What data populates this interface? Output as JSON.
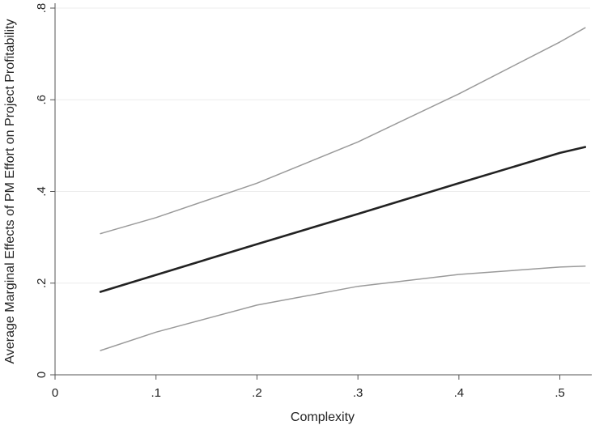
{
  "chart_data": {
    "type": "line",
    "title": "",
    "xlabel": "Complexity",
    "ylabel": "Average Marginal Effects of PM Effort on Project Profitability",
    "xlim": [
      0,
      0.53
    ],
    "ylim": [
      0,
      0.8
    ],
    "x_ticks": [
      0,
      0.1,
      0.2,
      0.3,
      0.4,
      0.5
    ],
    "x_tick_labels": [
      "0",
      ".1",
      ".2",
      ".3",
      ".4",
      ".5"
    ],
    "y_ticks": [
      0,
      0.2,
      0.4,
      0.6,
      0.8
    ],
    "y_tick_labels": [
      "0",
      ".2",
      ".4",
      ".6",
      ".8"
    ],
    "grid": true,
    "legend": "none",
    "series": [
      {
        "role": "estimate",
        "color": "#222222",
        "x": [
          0.045,
          0.1,
          0.2,
          0.3,
          0.4,
          0.5,
          0.525
        ],
        "y": [
          0.181,
          0.218,
          0.285,
          0.351,
          0.418,
          0.484,
          0.497
        ]
      },
      {
        "role": "upper-ci",
        "color": "#9a9a9a",
        "x": [
          0.045,
          0.1,
          0.2,
          0.3,
          0.4,
          0.5,
          0.525
        ],
        "y": [
          0.308,
          0.343,
          0.418,
          0.508,
          0.613,
          0.726,
          0.757
        ]
      },
      {
        "role": "lower-ci",
        "color": "#9a9a9a",
        "x": [
          0.045,
          0.1,
          0.2,
          0.3,
          0.4,
          0.5,
          0.525
        ],
        "y": [
          0.053,
          0.093,
          0.152,
          0.193,
          0.219,
          0.235,
          0.237
        ]
      }
    ]
  }
}
